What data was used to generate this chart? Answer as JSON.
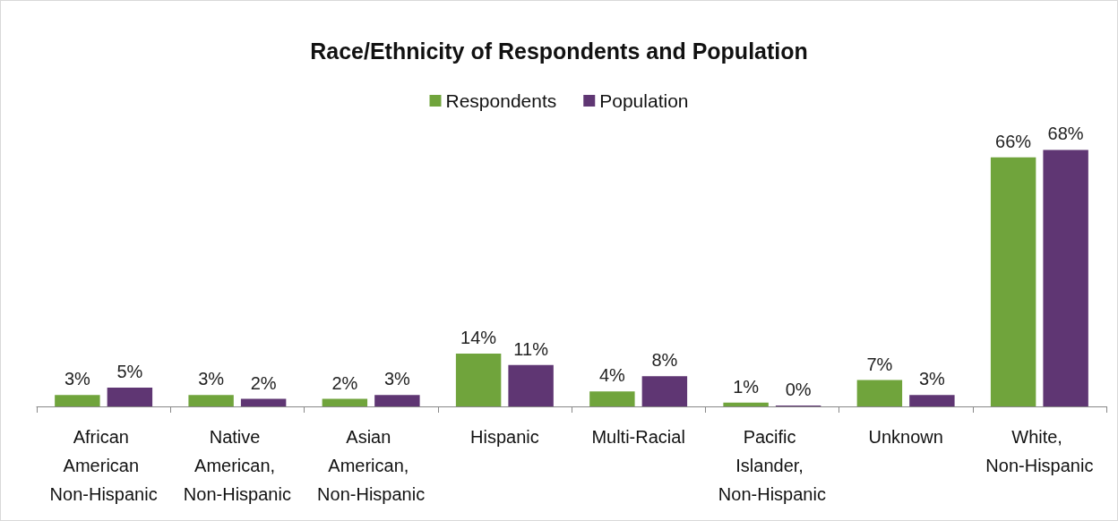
{
  "chart_data": {
    "type": "bar",
    "title": "Race/Ethnicity of Respondents and Population",
    "categories": [
      "African American Non-Hispanic",
      "Native American, Non-Hispanic",
      "Asian American, Non-Hispanic",
      "Hispanic",
      "Multi-Racial",
      "Pacific Islander, Non-Hispanic",
      "Unknown",
      "White, Non-Hispanic"
    ],
    "series": [
      {
        "name": "Respondents",
        "color": "#70a43c",
        "values": [
          3,
          3,
          2,
          14,
          4,
          1,
          7,
          66
        ],
        "value_labels": [
          "3%",
          "3%",
          "2%",
          "14%",
          "4%",
          "1%",
          "7%",
          "66%"
        ]
      },
      {
        "name": "Population",
        "color": "#5f3673",
        "values": [
          5,
          2,
          3,
          11,
          8,
          0,
          3,
          68
        ],
        "value_labels": [
          "5%",
          "2%",
          "3%",
          "11%",
          "8%",
          "0%",
          "3%",
          "68%"
        ]
      }
    ],
    "legend": "top"
  }
}
